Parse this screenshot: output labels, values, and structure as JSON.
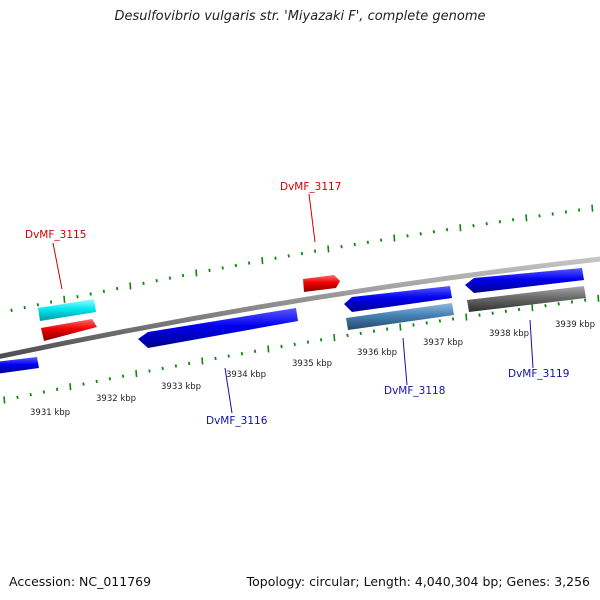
{
  "title": "Desulfovibrio vulgaris str. 'Miyazaki F', complete genome",
  "accession": "Accession: NC_011769",
  "summary": "Topology: circular; Length: 4,040,304 bp; Genes: 3,256",
  "scale_labels": [
    "3931 kbp",
    "3932 kbp",
    "3933 kbp",
    "3934 kbp",
    "3935 kbp",
    "3936 kbp",
    "3937 kbp",
    "3938 kbp",
    "3939 kbp"
  ],
  "gene_labels": {
    "g3115": "DvMF_3115",
    "g3116": "DvMF_3116",
    "g3117": "DvMF_3117",
    "g3118": "DvMF_3118",
    "g3119": "DvMF_3119"
  },
  "colors": {
    "forward_cds": "#0000ee",
    "rna_red": "#ee0000",
    "misc_cyan": "#00e5ee",
    "steel_blue": "#4682b4",
    "pseudo_gray": "#666666",
    "backbone": "#8c8c8c",
    "tick_green": "#0a8a0a",
    "label_red": "#cc0000",
    "label_blue": "#1010aa"
  }
}
